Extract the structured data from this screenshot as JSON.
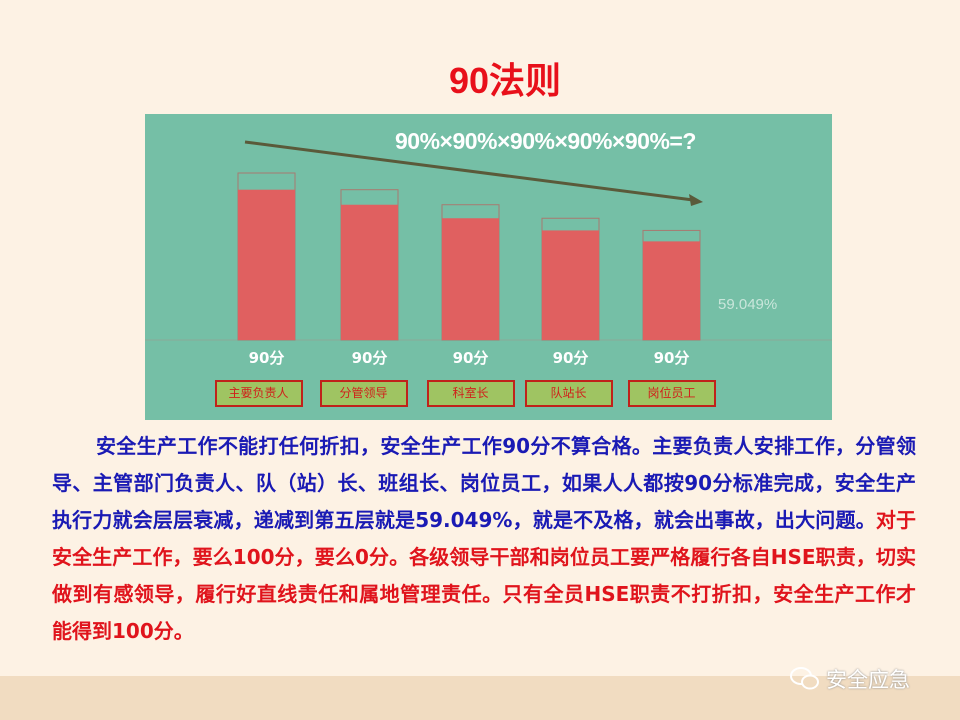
{
  "slide": {
    "title": "90法则",
    "paragraph": {
      "blue_text": "安全生产工作不能打任何折扣，安全生产工作90分不算合格。主要负责人安排工作，分管领导、主管部门负责人、队（站）长、班组长、岗位员工，如果人人都按90分标准完成，安全生产执行力就会层层衰减，递减到第五层就是59.049%，就是不及格，就会出事故，出大问题。",
      "red_text": "对于安全生产工作，要么100分，要么0分。各级领导干部和岗位员工要严格履行各自HSE职责，切实做到有感领导，履行好直线责任和属地管理责任。只有全员HSE职责不打折扣，安全生产工作才能得到100分。"
    },
    "watermark": {
      "icon": "wechat-icon",
      "text": "安全应急"
    },
    "colors": {
      "title": "#e8101a",
      "chart_bg": "#75bfa6",
      "bar": "#e06060",
      "blue_text": "#1a1ab4",
      "red_text": "#e0141c"
    }
  },
  "chart_data": {
    "type": "bar",
    "title": "90%×90%×90%×90%×90%=?",
    "categories": [
      "90分",
      "90分",
      "90分",
      "90分",
      "90分"
    ],
    "roles": [
      "主要负责人",
      "分管领导",
      "科室长",
      "队站长",
      "岗位员工"
    ],
    "outline_values": [
      100,
      90,
      81,
      72.9,
      65.61
    ],
    "values": [
      90,
      81,
      72.9,
      65.61,
      59.049
    ],
    "final_label": "59.049%",
    "ylim": [
      0,
      100
    ],
    "grid": false,
    "trend_arrow": "downward"
  }
}
